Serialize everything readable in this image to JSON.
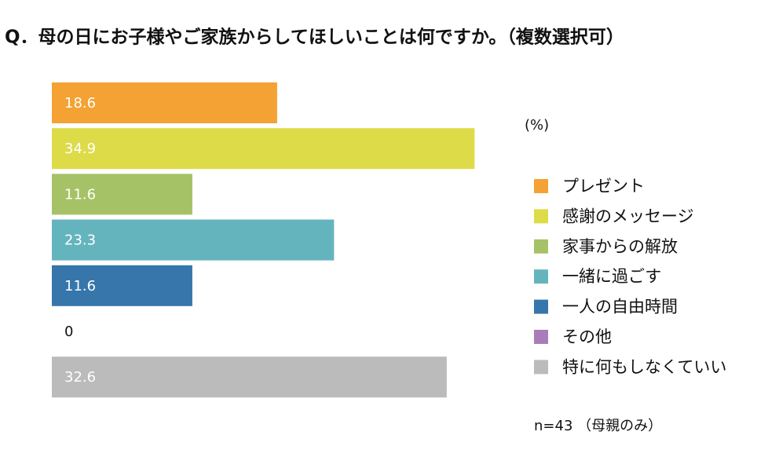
{
  "chart_data": {
    "type": "bar",
    "orientation": "horizontal",
    "title": "Q．母の日にお子様やご家族からしてほしいことは何ですか。（複数選択可）",
    "unit_label": "(%)",
    "note": "n=43 （母親のみ）",
    "categories": [
      "プレゼント",
      "感謝のメッセージ",
      "家事からの解放",
      "一緒に過ごす",
      "一人の自由時間",
      "その他",
      "特に何もしなくていい"
    ],
    "values": [
      18.6,
      34.9,
      11.6,
      23.3,
      11.6,
      0,
      32.6
    ],
    "colors": [
      "#f4a233",
      "#dedb48",
      "#a6c266",
      "#64b4be",
      "#3676ab",
      "#a97db9",
      "#bbbbbb"
    ],
    "xlim": [
      0,
      40
    ],
    "legend": "right"
  }
}
